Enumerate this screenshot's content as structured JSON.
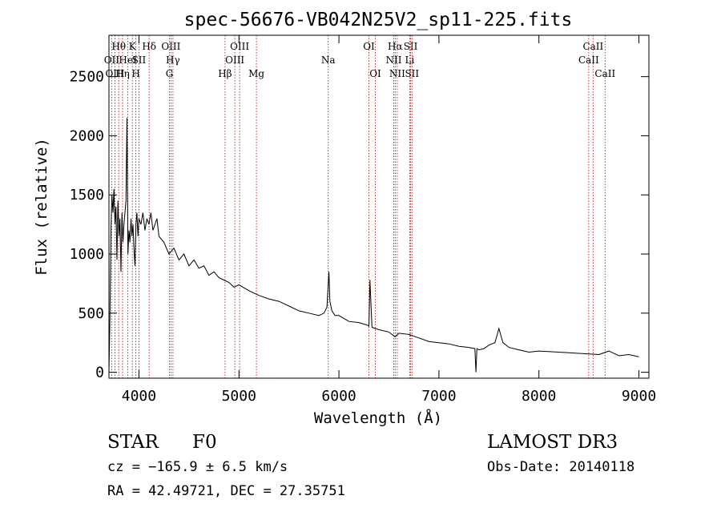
{
  "chart_data": {
    "type": "line",
    "title": "spec-56676-VB042N25V2_sp11-225.fits",
    "xlabel": "Wavelength (Å)",
    "ylabel": "Flux (relative)",
    "xlim": [
      3700,
      9100
    ],
    "ylim": [
      -50,
      2850
    ],
    "xticks": [
      4000,
      5000,
      6000,
      7000,
      8000,
      9000
    ],
    "yticks": [
      0,
      500,
      1000,
      1500,
      2000,
      2500
    ],
    "grid": false,
    "line_color": "#000000",
    "marker_color": "#b22222",
    "series": [
      {
        "x": [
          3700,
          3710,
          3720,
          3730,
          3740,
          3750,
          3760,
          3770,
          3780,
          3790,
          3800,
          3810,
          3820,
          3830,
          3840,
          3850,
          3860,
          3870,
          3880,
          3890,
          3900,
          3910,
          3920,
          3930,
          3940,
          3950,
          3960,
          3970,
          3980,
          3990,
          4000,
          4020,
          4040,
          4060,
          4080,
          4100,
          4120,
          4140,
          4160,
          4180,
          4200,
          4250,
          4300,
          4350,
          4400,
          4450,
          4500,
          4550,
          4600,
          4650,
          4700,
          4750,
          4800,
          4850,
          4900,
          4950,
          5000,
          5100,
          5200,
          5300,
          5400,
          5500,
          5600,
          5700,
          5800,
          5850,
          5880,
          5900,
          5910,
          5930,
          5960,
          6000,
          6100,
          6200,
          6280,
          6300,
          6310,
          6330,
          6400,
          6500,
          6560,
          6600,
          6700,
          6800,
          6900,
          7000,
          7100,
          7200,
          7300,
          7360,
          7370,
          7380,
          7400,
          7450,
          7500,
          7560,
          7600,
          7640,
          7700,
          7800,
          7900,
          8000,
          8200,
          8400,
          8600,
          8700,
          8800,
          8900,
          9000
        ],
        "y": [
          0,
          450,
          1200,
          1500,
          1350,
          1550,
          1250,
          1400,
          950,
          1450,
          1150,
          1300,
          850,
          1350,
          1100,
          1250,
          1350,
          1450,
          2150,
          1000,
          1200,
          1100,
          1300,
          1150,
          1250,
          1050,
          900,
          1250,
          1350,
          1150,
          1300,
          1250,
          1350,
          1200,
          1300,
          1250,
          1350,
          1200,
          1250,
          1300,
          1150,
          1100,
          1000,
          1050,
          950,
          1000,
          900,
          950,
          880,
          900,
          820,
          850,
          800,
          780,
          760,
          720,
          740,
          690,
          650,
          620,
          600,
          560,
          520,
          500,
          480,
          500,
          550,
          850,
          600,
          520,
          480,
          480,
          430,
          420,
          400,
          390,
          780,
          380,
          360,
          340,
          300,
          330,
          320,
          290,
          260,
          250,
          240,
          220,
          210,
          200,
          0,
          200,
          190,
          200,
          230,
          250,
          370,
          250,
          210,
          190,
          170,
          180,
          170,
          160,
          150,
          180,
          140,
          150,
          130
        ]
      }
    ],
    "lines": [
      {
        "label": "Hθ",
        "x": 3798,
        "row": 0
      },
      {
        "label": "OII",
        "x": 3727,
        "row": 1
      },
      {
        "label": "OIII",
        "x": 3760,
        "row": 2
      },
      {
        "label": "Hη",
        "x": 3836,
        "row": 2
      },
      {
        "label": "HeI",
        "x": 3889,
        "row": 1
      },
      {
        "label": "K",
        "x": 3934,
        "row": 0
      },
      {
        "label": "H",
        "x": 3969,
        "row": 2
      },
      {
        "label": "SII",
        "x": 4000,
        "row": 1
      },
      {
        "label": "Hδ",
        "x": 4102,
        "row": 0
      },
      {
        "label": "OIII",
        "x": 4320,
        "row": 0
      },
      {
        "label": "Hγ",
        "x": 4340,
        "row": 1
      },
      {
        "label": "G",
        "x": 4305,
        "row": 2
      },
      {
        "label": "Hβ",
        "x": 4861,
        "row": 2
      },
      {
        "label": "OIII",
        "x": 5007,
        "row": 0
      },
      {
        "label": "OIII",
        "x": 4959,
        "row": 1
      },
      {
        "label": "Mg",
        "x": 5175,
        "row": 2
      },
      {
        "label": "Na",
        "x": 5893,
        "row": 1
      },
      {
        "label": "OI",
        "x": 6300,
        "row": 0
      },
      {
        "label": "OI",
        "x": 6364,
        "row": 2
      },
      {
        "label": "Hα",
        "x": 6563,
        "row": 0
      },
      {
        "label": "NII",
        "x": 6548,
        "row": 1
      },
      {
        "label": "NII",
        "x": 6583,
        "row": 2
      },
      {
        "label": "SII",
        "x": 6717,
        "row": 0
      },
      {
        "label": "Li",
        "x": 6708,
        "row": 1
      },
      {
        "label": "SII",
        "x": 6731,
        "row": 2
      },
      {
        "label": "CaII",
        "x": 8542,
        "row": 0
      },
      {
        "label": "CaII",
        "x": 8498,
        "row": 1
      },
      {
        "label": "CaII",
        "x": 8662,
        "row": 2
      }
    ]
  },
  "info": {
    "class_label": "STAR",
    "subclass": "F0",
    "survey": "LAMOST DR3",
    "cz": "cz = −165.9 ± 6.5 km/s",
    "obs_date": "Obs-Date: 20140118",
    "coords": "RA =  42.49721, DEC =  27.35751"
  }
}
